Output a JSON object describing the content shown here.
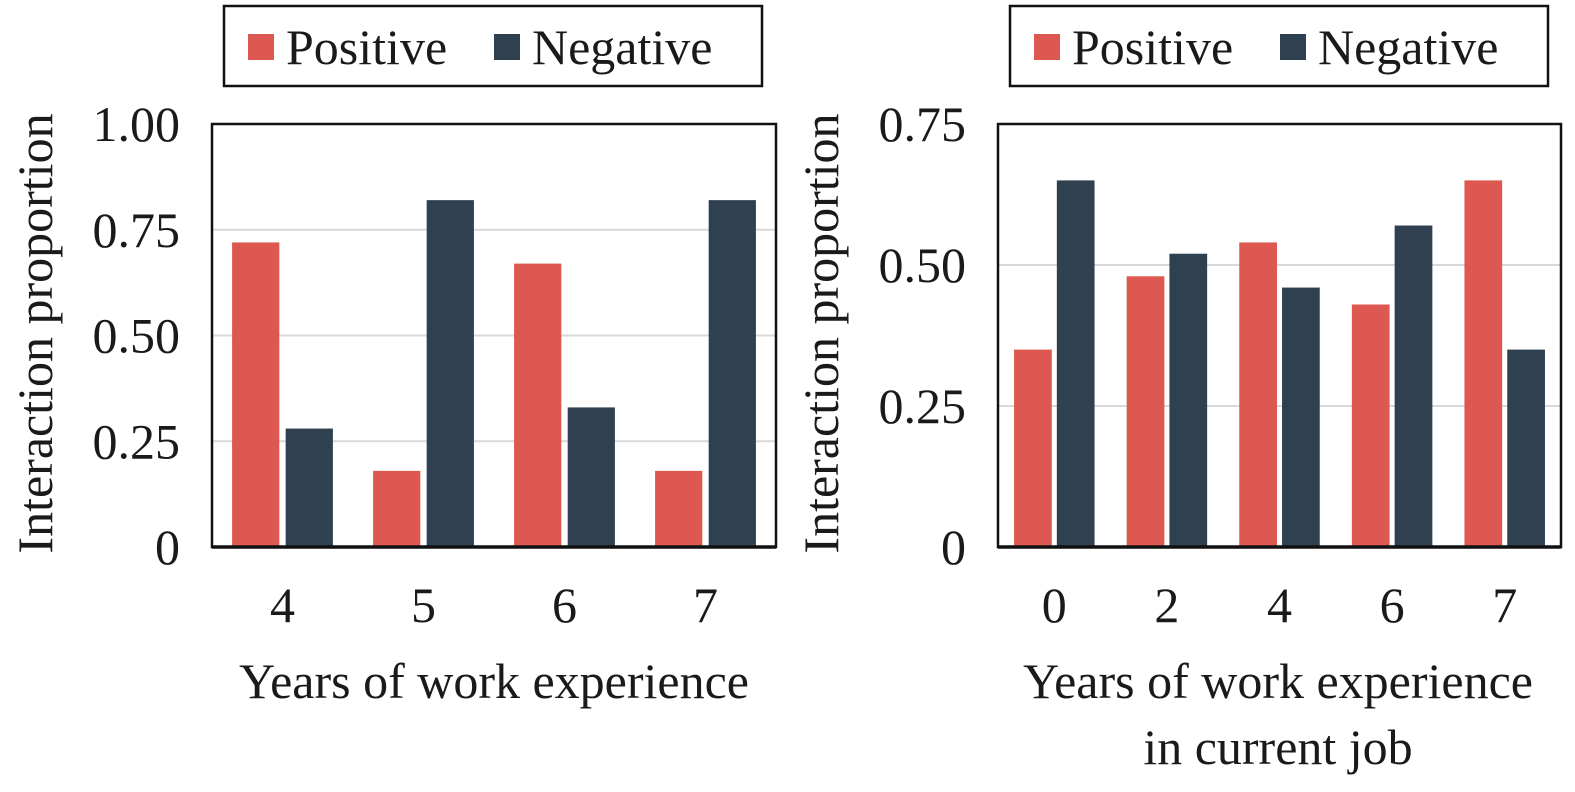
{
  "colors": {
    "positive": "#dc5850",
    "negative": "#2f4050"
  },
  "chart_data": [
    {
      "type": "bar",
      "categories": [
        "4",
        "5",
        "6",
        "7"
      ],
      "series": [
        {
          "name": "Positive",
          "values": [
            0.72,
            0.18,
            0.67,
            0.18
          ]
        },
        {
          "name": "Negative",
          "values": [
            0.28,
            0.82,
            0.33,
            0.82
          ]
        }
      ],
      "xlabel": [
        "Years of work experience"
      ],
      "ylabel": "Interaction proportion",
      "ylim": [
        0,
        1.0
      ],
      "yticks": [
        0,
        0.25,
        0.5,
        0.75,
        1.0
      ],
      "ytick_labels": [
        "0",
        "0.25",
        "0.50",
        "0.75",
        "1.00"
      ],
      "grid": true,
      "legend": "top"
    },
    {
      "type": "bar",
      "categories": [
        "0",
        "2",
        "4",
        "6",
        "7"
      ],
      "series": [
        {
          "name": "Positive",
          "values": [
            0.35,
            0.48,
            0.54,
            0.43,
            0.65
          ]
        },
        {
          "name": "Negative",
          "values": [
            0.65,
            0.52,
            0.46,
            0.57,
            0.35
          ]
        }
      ],
      "xlabel": [
        "Years of work experience",
        "in current job"
      ],
      "ylabel": "Interaction proportion",
      "ylim": [
        0,
        0.75
      ],
      "yticks": [
        0,
        0.25,
        0.5,
        0.75
      ],
      "ytick_labels": [
        "0",
        "0.25",
        "0.50",
        "0.75"
      ],
      "grid": true,
      "legend": "top"
    }
  ]
}
